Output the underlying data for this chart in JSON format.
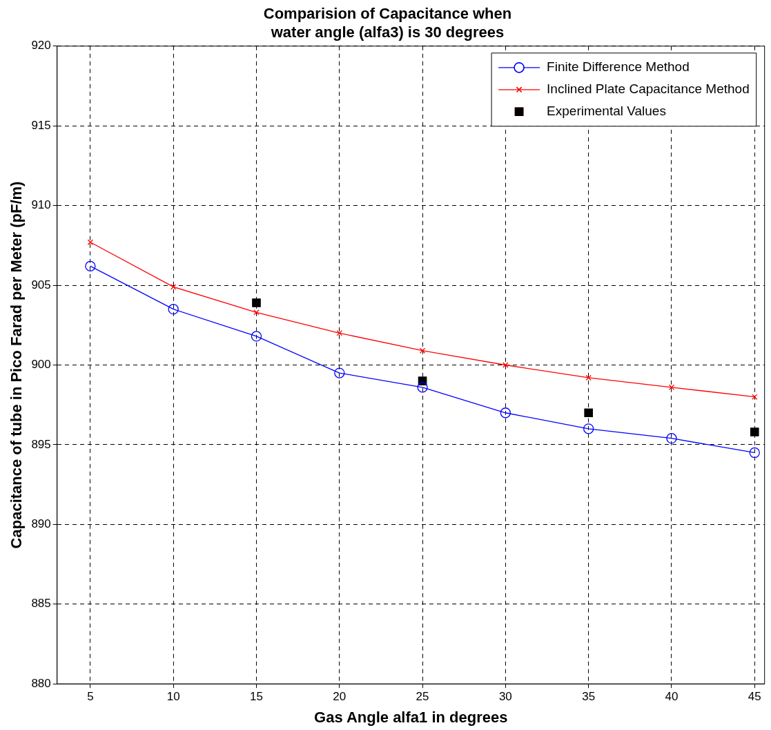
{
  "chart_data": {
    "type": "line",
    "title": "Comparision of Capacitance when\nwater angle (alfa3) is 30 degrees",
    "xlabel": "Gas Angle alfa1 in degrees",
    "ylabel": "Capacitance of tube in Pico Farad per Meter (pF/m)",
    "x": [
      5,
      10,
      15,
      20,
      25,
      30,
      35,
      40,
      45
    ],
    "series": [
      {
        "name": "Finite Difference Method",
        "color": "#0000ff",
        "marker": "circle",
        "values": [
          906.2,
          903.5,
          901.8,
          899.5,
          898.6,
          897.0,
          896.0,
          895.4,
          894.5
        ]
      },
      {
        "name": "Inclined Plate Capacitance Method",
        "color": "#ff0000",
        "marker": "cross",
        "values": [
          907.7,
          904.9,
          903.3,
          902.0,
          900.9,
          900.0,
          899.2,
          898.6,
          898.0
        ]
      },
      {
        "name": "Experimental Values",
        "type": "scatter",
        "color": "#000000",
        "marker": "square",
        "x": [
          15,
          25,
          35,
          45
        ],
        "values": [
          903.9,
          899.0,
          897.0,
          895.8
        ]
      }
    ],
    "xlim": [
      3,
      45.6
    ],
    "xticks": [
      5,
      10,
      15,
      20,
      25,
      30,
      35,
      40,
      45
    ],
    "ylim": [
      880,
      920
    ],
    "yticks": [
      880,
      885,
      890,
      895,
      900,
      905,
      910,
      915,
      920
    ],
    "grid": true,
    "legend": "top right",
    "line_style": "solid"
  }
}
